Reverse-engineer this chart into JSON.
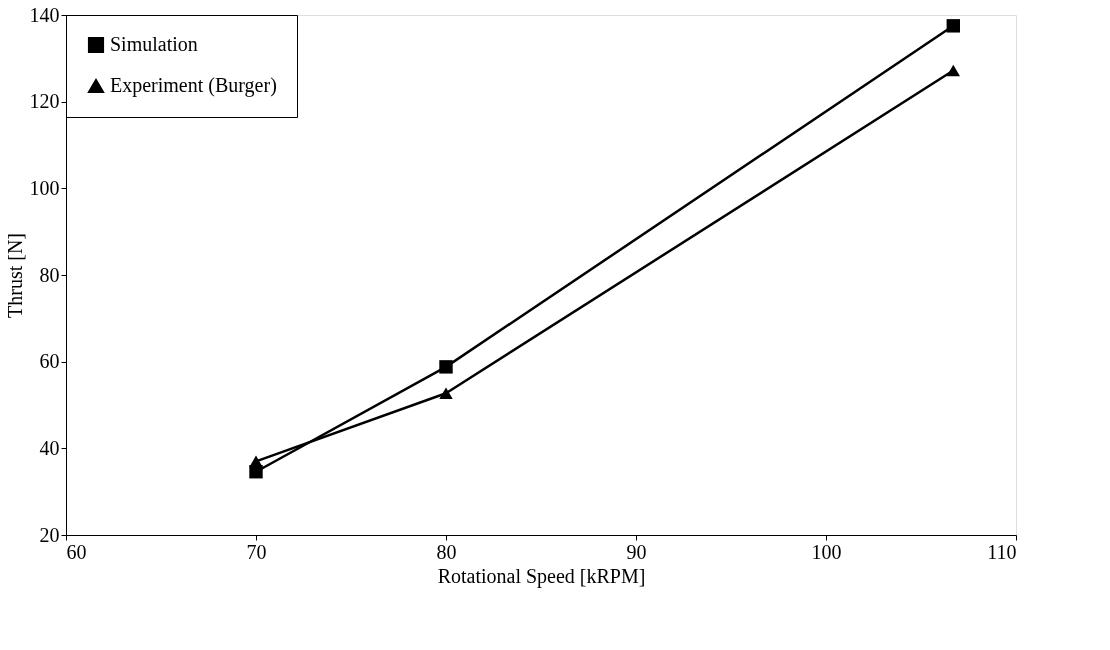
{
  "chart_data": {
    "type": "line",
    "xlabel": "Rotational Speed [kRPM]",
    "ylabel": "Thrust [N]",
    "xlim": [
      60,
      110
    ],
    "xticks": [
      60,
      70,
      80,
      90,
      100,
      110
    ],
    "ylim": [
      20,
      140
    ],
    "yticks": [
      20,
      40,
      60,
      80,
      100,
      120,
      140
    ],
    "grid": false,
    "legend": "top left",
    "line_style": "solid",
    "series": [
      {
        "name": "Simulation",
        "color": "#000000",
        "marker": "square",
        "x": [
          70,
          80,
          106.7
        ],
        "values": [
          34.6,
          58.8,
          137.5
        ]
      },
      {
        "name": "Experiment (Burger)",
        "color": "#000000",
        "marker": "triangle",
        "x": [
          70,
          80,
          106.7
        ],
        "values": [
          37,
          52.7,
          127.2
        ]
      }
    ]
  }
}
